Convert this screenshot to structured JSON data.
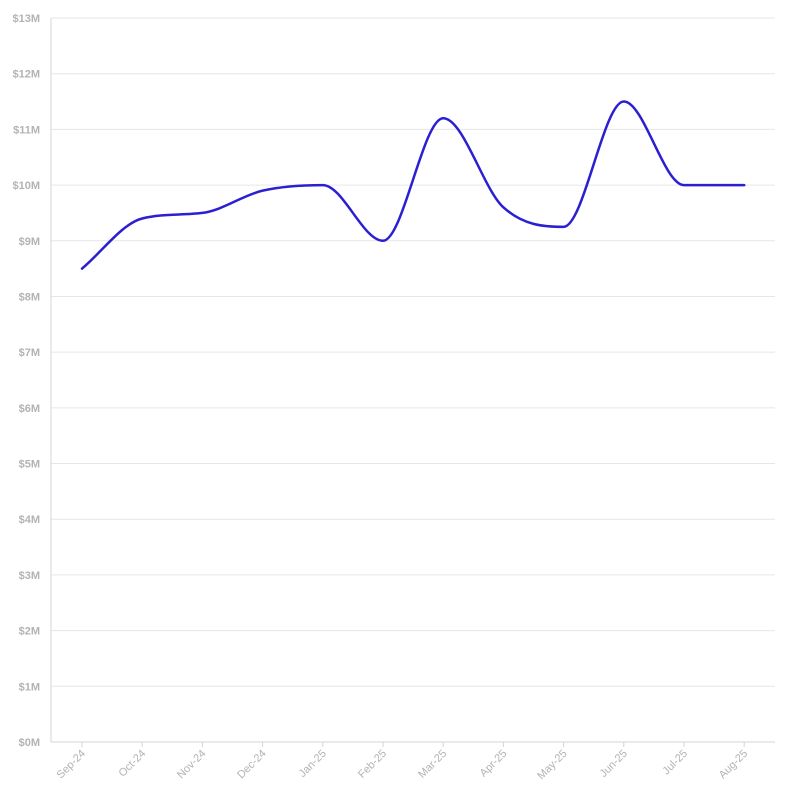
{
  "chart_data": {
    "type": "line",
    "title": "",
    "xlabel": "",
    "ylabel": "",
    "x": [
      "Sep-24",
      "Oct-24",
      "Nov-24",
      "Dec-24",
      "Jan-25",
      "Feb-25",
      "Mar-25",
      "Apr-25",
      "May-25",
      "Jun-25",
      "Jul-25",
      "Aug-25"
    ],
    "series": [
      {
        "values": [
          8.5,
          9.4,
          9.5,
          9.9,
          10.0,
          9.0,
          11.2,
          9.6,
          9.25,
          11.5,
          10.0,
          10.0
        ]
      }
    ],
    "ylim": [
      0,
      13
    ],
    "yticks": [
      0,
      1,
      2,
      3,
      4,
      5,
      6,
      7,
      8,
      9,
      10,
      11,
      12,
      13
    ],
    "ytick_labels": [
      "$0M",
      "$1M",
      "$2M",
      "$3M",
      "$4M",
      "$5M",
      "$6M",
      "$7M",
      "$8M",
      "$9M",
      "$10M",
      "$11M",
      "$12M",
      "$13M"
    ],
    "grid": true,
    "legend": "none",
    "colors": {
      "line": "#2b1fd1",
      "grid": "#e6e6e6",
      "axis": "#d4d4d4",
      "tick_text": "#b3b3b3"
    }
  }
}
